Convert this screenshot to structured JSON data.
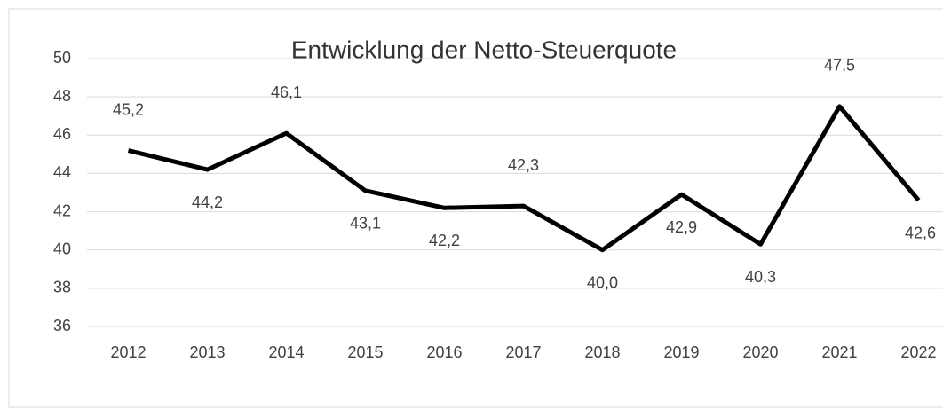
{
  "chart_data": {
    "type": "line",
    "title": "Entwicklung der Netto-Steuerquote",
    "categories": [
      "2012",
      "2013",
      "2014",
      "2015",
      "2016",
      "2017",
      "2018",
      "2019",
      "2020",
      "2021",
      "2022"
    ],
    "series": [
      {
        "name": "Netto-Steuerquote",
        "color": "#000000",
        "values": [
          45.2,
          44.2,
          46.1,
          43.1,
          42.2,
          42.3,
          40.0,
          42.9,
          40.3,
          47.5,
          42.6
        ],
        "value_labels": [
          "45,2",
          "44,2",
          "46,1",
          "43,1",
          "42,2",
          "42,3",
          "40,0",
          "42,9",
          "40,3",
          "47,5",
          "42,6"
        ]
      }
    ],
    "ylim": [
      36,
      50
    ],
    "yticks": [
      36,
      38,
      40,
      42,
      44,
      46,
      48,
      50
    ],
    "grid": true
  }
}
